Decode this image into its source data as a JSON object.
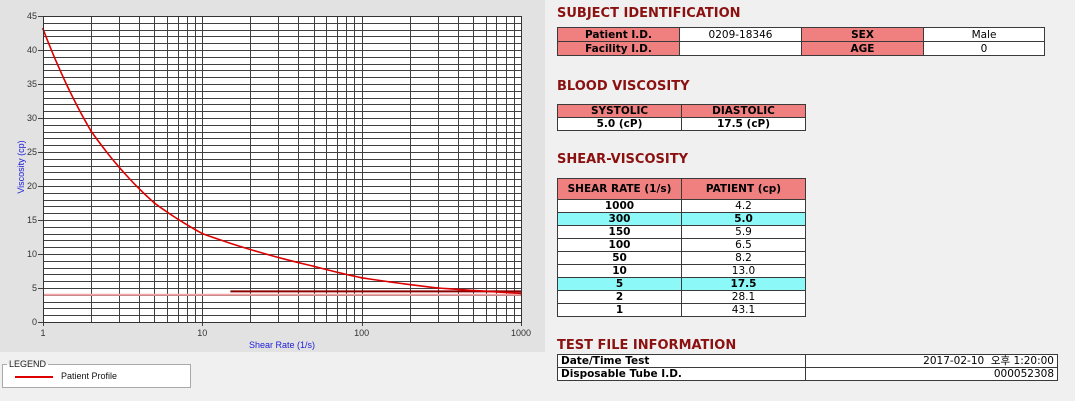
{
  "colors": {
    "heading": "#8b1010",
    "label_bg": "#f08080",
    "highlight_bg": "#8cf8f8",
    "axis_label": "#1c1cd8"
  },
  "subject": {
    "heading": "SUBJECT IDENTIFICATION",
    "patient_id_label": "Patient I.D.",
    "patient_id": "0209-18346",
    "sex_label": "SEX",
    "sex": "Male",
    "facility_id_label": "Facility I.D.",
    "facility_id": "",
    "age_label": "AGE",
    "age": "0"
  },
  "blood_viscosity": {
    "heading": "BLOOD VISCOSITY",
    "systolic_label": "SYSTOLIC",
    "diastolic_label": "DIASTOLIC",
    "systolic": "5.0 (cP)",
    "diastolic": "17.5 (cP)"
  },
  "shear_viscosity": {
    "heading": "SHEAR-VISCOSITY",
    "col_shear_rate": "SHEAR RATE (1/s)",
    "col_patient": "PATIENT (cp)",
    "rows": [
      {
        "shear_rate": "1000",
        "patient": "4.2",
        "highlight": false
      },
      {
        "shear_rate": "300",
        "patient": "5.0",
        "highlight": true
      },
      {
        "shear_rate": "150",
        "patient": "5.9",
        "highlight": false
      },
      {
        "shear_rate": "100",
        "patient": "6.5",
        "highlight": false
      },
      {
        "shear_rate": "50",
        "patient": "8.2",
        "highlight": false
      },
      {
        "shear_rate": "10",
        "patient": "13.0",
        "highlight": false
      },
      {
        "shear_rate": "5",
        "patient": "17.5",
        "highlight": true
      },
      {
        "shear_rate": "2",
        "patient": "28.1",
        "highlight": false
      },
      {
        "shear_rate": "1",
        "patient": "43.1",
        "highlight": false
      }
    ]
  },
  "test_file": {
    "heading": "TEST FILE INFORMATION",
    "date_label": "Date/Time Test",
    "date": "2017-02-10  오후 1:20:00",
    "tube_label": "Disposable Tube I.D.",
    "tube_id": "000052308"
  },
  "chart_data": {
    "type": "line",
    "xlabel": "Shear Rate (1/s)",
    "ylabel": "Viscosity (cp)",
    "xscale": "log",
    "xlim": [
      1,
      1000
    ],
    "ylim": [
      0,
      45
    ],
    "x_ticks": [
      1,
      10,
      100,
      1000
    ],
    "y_ticks": [
      0,
      5,
      10,
      15,
      20,
      25,
      30,
      35,
      40,
      45
    ],
    "grid": true,
    "legend": {
      "title": "LEGEND",
      "position": "bottom-left"
    },
    "series": [
      {
        "name": "Patient Profile",
        "color": "#dd0000",
        "x": [
          1,
          2,
          5,
          10,
          50,
          100,
          150,
          300,
          1000
        ],
        "y": [
          43.1,
          28.1,
          17.5,
          13.0,
          8.2,
          6.5,
          5.9,
          5.0,
          4.2
        ]
      }
    ],
    "reference_lines": [
      {
        "y": 4.0,
        "x": [
          1,
          1000
        ],
        "color": "#f3a3a3"
      },
      {
        "y": 4.5,
        "x": [
          15,
          1000
        ],
        "color": "#8b0000"
      }
    ]
  }
}
